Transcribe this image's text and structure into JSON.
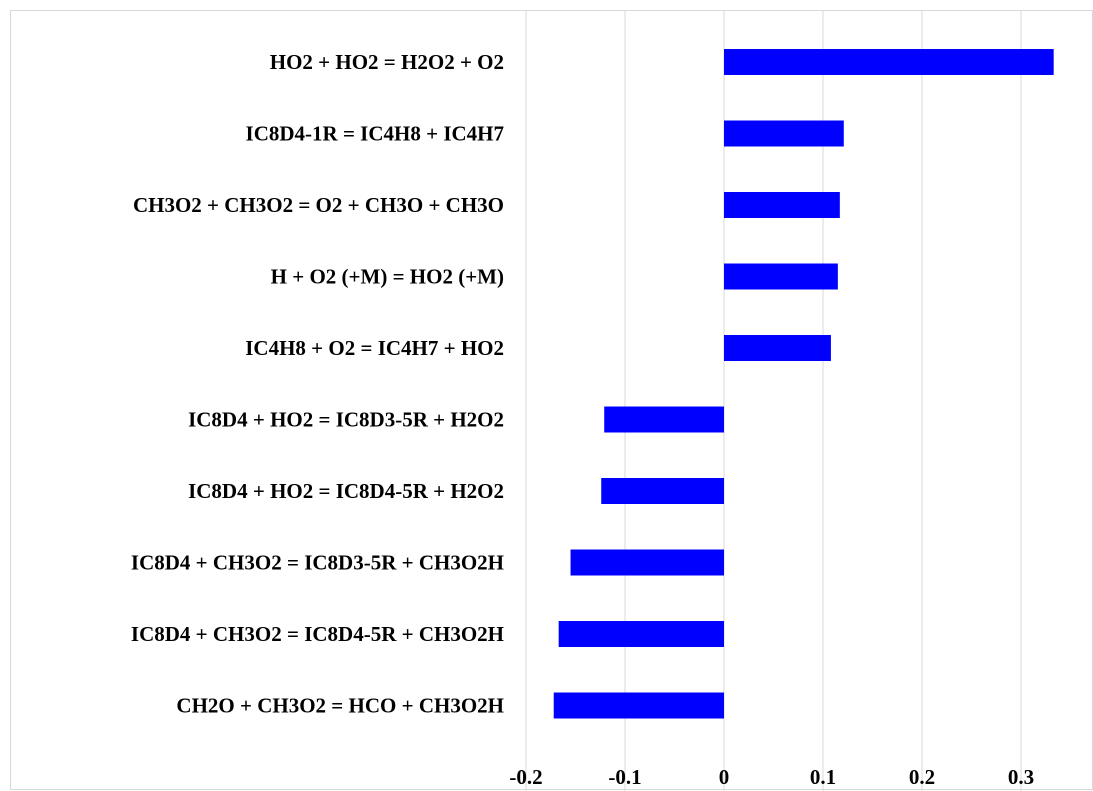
{
  "chart_data": {
    "type": "bar",
    "orientation": "horizontal",
    "categories": [
      "HO2 + HO2 = H2O2 + O2",
      "IC8D4-1R = IC4H8 + IC4H7",
      "CH3O2 + CH3O2 = O2 + CH3O + CH3O",
      "H + O2 (+M) = HO2 (+M)",
      "IC4H8 + O2 = IC4H7 + HO2",
      "IC8D4 + HO2 = IC8D3-5R + H2O2",
      "IC8D4 + HO2 = IC8D4-5R + H2O2",
      "IC8D4 + CH3O2 = IC8D3-5R + CH3O2H",
      "IC8D4 + CH3O2 = IC8D4-5R + CH3O2H",
      "CH2O + CH3O2 = HCO + CH3O2H"
    ],
    "values": [
      0.333,
      0.121,
      0.117,
      0.115,
      0.108,
      -0.121,
      -0.124,
      -0.155,
      -0.167,
      -0.172
    ],
    "xticks": [
      -0.2,
      -0.1,
      0,
      0.1,
      0.2,
      0.3
    ],
    "xtick_labels": [
      "-0.2",
      "-0.1",
      "0",
      "0.1",
      "0.2",
      "0.3"
    ],
    "xlim": [
      -0.2,
      0.33
    ],
    "grid": "vertical",
    "bar_color": "#0000ff",
    "grid_color": "#d9d9d9",
    "title": "",
    "xlabel": "",
    "ylabel": ""
  }
}
